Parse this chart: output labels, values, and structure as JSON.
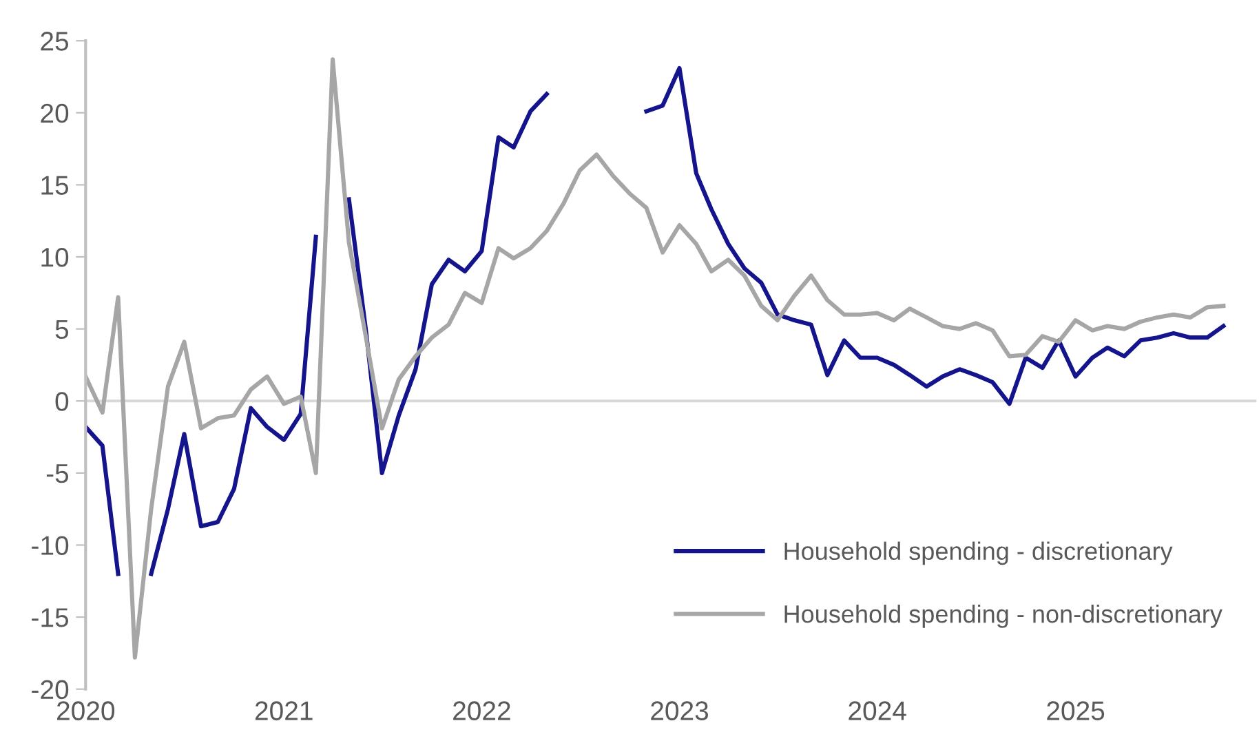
{
  "chart_data": {
    "type": "line",
    "x": [
      "2020-01",
      "2020-02",
      "2020-03",
      "2020-04",
      "2020-05",
      "2020-06",
      "2020-07",
      "2020-08",
      "2020-09",
      "2020-10",
      "2020-11",
      "2020-12",
      "2021-01",
      "2021-02",
      "2021-03",
      "2021-04",
      "2021-05",
      "2021-06",
      "2021-07",
      "2021-08",
      "2021-09",
      "2021-10",
      "2021-11",
      "2021-12",
      "2022-01",
      "2022-02",
      "2022-03",
      "2022-04",
      "2022-05",
      "2022-06",
      "2022-07",
      "2022-08",
      "2022-09",
      "2022-10",
      "2022-11",
      "2022-12",
      "2023-01",
      "2023-02",
      "2023-03",
      "2023-04",
      "2023-05",
      "2023-06",
      "2023-07",
      "2023-08",
      "2023-09",
      "2023-10",
      "2023-11",
      "2023-12",
      "2024-01",
      "2024-02",
      "2024-03",
      "2024-04",
      "2024-05",
      "2024-06",
      "2024-07",
      "2024-08",
      "2024-09",
      "2024-10",
      "2024-11",
      "2024-12",
      "2025-01",
      "2025-02",
      "2025-03",
      "2025-04",
      "2025-05",
      "2025-06",
      "2025-07",
      "2025-08",
      "2025-09",
      "2025-10"
    ],
    "series": [
      {
        "name": "Household spending - discretionary",
        "color": "#14148c",
        "values": [
          -1.8,
          -3.1,
          -12,
          null,
          -12,
          -7.5,
          -2.3,
          -8.7,
          -8.4,
          -6.1,
          -0.5,
          -1.8,
          -2.7,
          -0.9,
          11.4,
          null,
          14,
          5,
          -5.0,
          -1,
          2.2,
          8.1,
          9.8,
          9.0,
          10.4,
          18.3,
          17.6,
          20.1,
          21.3,
          null,
          null,
          null,
          null,
          null,
          20.1,
          20.5,
          23.1,
          15.8,
          13.3,
          10.9,
          9.2,
          8.2,
          6.0,
          5.6,
          5.3,
          1.8,
          4.2,
          3.0,
          3.0,
          2.5,
          1.8,
          1.0,
          1.7,
          2.2,
          1.8,
          1.3,
          -0.2,
          3.0,
          2.3,
          4.2,
          1.7,
          3.0,
          3.7,
          3.1,
          4.2,
          4.4,
          4.7,
          4.4,
          4.4,
          5.2
        ]
      },
      {
        "name": "Household spending - non-discretionary",
        "color": "#a6a6a6",
        "values": [
          1.7,
          -0.8,
          7.2,
          -17.8,
          -7.5,
          1.0,
          4.1,
          -1.9,
          -1.2,
          -1.0,
          0.8,
          1.7,
          -0.2,
          0.3,
          -5.0,
          23.7,
          11,
          4.5,
          -1.9,
          1.5,
          3.1,
          4.4,
          5.3,
          7.5,
          6.8,
          10.6,
          9.9,
          10.6,
          11.8,
          13.7,
          16.0,
          17.1,
          15.6,
          14.4,
          13.4,
          10.3,
          12.2,
          10.9,
          9.0,
          9.8,
          8.7,
          6.6,
          5.6,
          7.3,
          8.7,
          7.0,
          6.0,
          6.0,
          6.1,
          5.6,
          6.4,
          5.8,
          5.2,
          5.0,
          5.4,
          4.9,
          3.1,
          3.2,
          4.5,
          4.1,
          5.6,
          4.9,
          5.2,
          5.0,
          5.5,
          5.8,
          6.0,
          5.8,
          6.5,
          6.6
        ]
      }
    ],
    "xlim": [
      "2020-01-01",
      "2025-12-01"
    ],
    "xticks": [
      {
        "value": "2020-01-01",
        "label": "2020"
      },
      {
        "value": "2021-01-01",
        "label": "2021"
      },
      {
        "value": "2022-01-01",
        "label": "2022"
      },
      {
        "value": "2023-01-01",
        "label": "2023"
      },
      {
        "value": "2024-01-01",
        "label": "2024"
      },
      {
        "value": "2025-01-01",
        "label": "2025"
      }
    ],
    "ylim": [
      -20,
      25
    ],
    "yticks": [
      -20,
      -15,
      -10,
      -5,
      0,
      5,
      10,
      15,
      20,
      25
    ],
    "ref_lines": [
      {
        "axis": "y",
        "value": 0,
        "color": "#d9d9d9"
      }
    ],
    "grid": false,
    "legend": "bottom right",
    "marker": "none",
    "line_style": "solid"
  }
}
